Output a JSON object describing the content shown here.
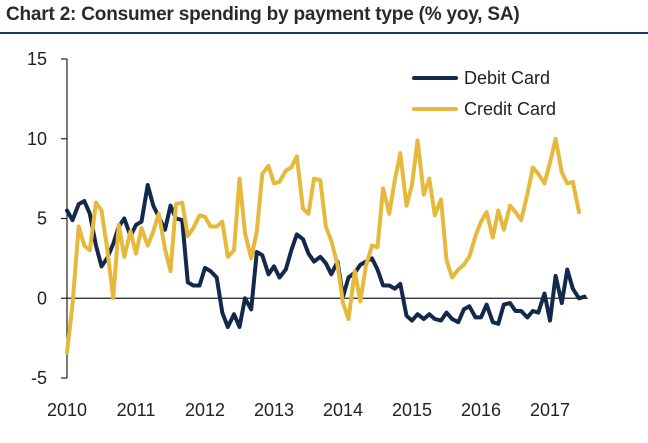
{
  "chart_data": {
    "type": "line",
    "title": "Chart 2: Consumer spending by payment type (% yoy, SA)",
    "xlabel": "",
    "ylabel": "",
    "xlim": [
      2010.0,
      2017.55
    ],
    "ylim": [
      -5,
      15
    ],
    "yticks": [
      "15",
      "10",
      "5",
      "0",
      "-5"
    ],
    "xticks": [
      "2010",
      "2011",
      "2012",
      "2013",
      "2014",
      "2015",
      "2016",
      "2017"
    ],
    "legend_position": "top-right",
    "grid": false,
    "series": [
      {
        "name": "Debit Card",
        "color": "#13294b",
        "points": [
          [
            2010.0,
            5.5
          ],
          [
            2010.08,
            4.9
          ],
          [
            2010.17,
            5.9
          ],
          [
            2010.25,
            6.1
          ],
          [
            2010.33,
            5.3
          ],
          [
            2010.42,
            3.3
          ],
          [
            2010.5,
            2.0
          ],
          [
            2010.58,
            2.5
          ],
          [
            2010.67,
            3.4
          ],
          [
            2010.75,
            4.5
          ],
          [
            2010.83,
            5.0
          ],
          [
            2010.92,
            3.9
          ],
          [
            2011.0,
            4.6
          ],
          [
            2011.08,
            4.8
          ],
          [
            2011.17,
            7.1
          ],
          [
            2011.25,
            5.8
          ],
          [
            2011.33,
            5.1
          ],
          [
            2011.42,
            4.3
          ],
          [
            2011.5,
            5.8
          ],
          [
            2011.58,
            5.0
          ],
          [
            2011.67,
            4.9
          ],
          [
            2011.75,
            1.0
          ],
          [
            2011.83,
            0.8
          ],
          [
            2011.92,
            0.8
          ],
          [
            2012.0,
            1.9
          ],
          [
            2012.08,
            1.7
          ],
          [
            2012.17,
            1.3
          ],
          [
            2012.25,
            -0.9
          ],
          [
            2012.33,
            -1.8
          ],
          [
            2012.42,
            -1.0
          ],
          [
            2012.5,
            -1.8
          ],
          [
            2012.58,
            0.0
          ],
          [
            2012.67,
            -0.7
          ],
          [
            2012.75,
            2.9
          ],
          [
            2012.83,
            2.7
          ],
          [
            2012.92,
            1.5
          ],
          [
            2013.0,
            2.0
          ],
          [
            2013.08,
            1.3
          ],
          [
            2013.17,
            1.8
          ],
          [
            2013.25,
            3.0
          ],
          [
            2013.33,
            4.0
          ],
          [
            2013.42,
            3.7
          ],
          [
            2013.5,
            2.8
          ],
          [
            2013.58,
            2.3
          ],
          [
            2013.67,
            2.6
          ],
          [
            2013.75,
            2.2
          ],
          [
            2013.83,
            1.5
          ],
          [
            2013.92,
            2.3
          ],
          [
            2014.0,
            0.1
          ],
          [
            2014.08,
            1.3
          ],
          [
            2014.17,
            1.6
          ],
          [
            2014.25,
            2.1
          ],
          [
            2014.33,
            2.3
          ],
          [
            2014.42,
            2.5
          ],
          [
            2014.5,
            1.8
          ],
          [
            2014.58,
            0.8
          ],
          [
            2014.67,
            0.8
          ],
          [
            2014.75,
            0.6
          ],
          [
            2014.83,
            0.9
          ],
          [
            2014.92,
            -1.1
          ],
          [
            2015.0,
            -1.4
          ],
          [
            2015.08,
            -1.0
          ],
          [
            2015.17,
            -1.3
          ],
          [
            2015.25,
            -1.0
          ],
          [
            2015.33,
            -1.3
          ],
          [
            2015.42,
            -1.4
          ],
          [
            2015.5,
            -0.9
          ],
          [
            2015.58,
            -1.3
          ],
          [
            2015.67,
            -1.5
          ],
          [
            2015.75,
            -0.7
          ],
          [
            2015.83,
            -0.5
          ],
          [
            2015.92,
            -1.2
          ],
          [
            2016.0,
            -1.2
          ],
          [
            2016.08,
            -0.4
          ],
          [
            2016.17,
            -1.5
          ],
          [
            2016.25,
            -1.6
          ],
          [
            2016.33,
            -0.4
          ],
          [
            2016.42,
            -0.3
          ],
          [
            2016.5,
            -0.8
          ],
          [
            2016.58,
            -0.8
          ],
          [
            2016.67,
            -1.2
          ],
          [
            2016.75,
            -0.8
          ],
          [
            2016.83,
            -0.9
          ],
          [
            2016.92,
            0.3
          ],
          [
            2017.0,
            -1.4
          ],
          [
            2017.08,
            1.4
          ],
          [
            2017.17,
            -0.3
          ],
          [
            2017.25,
            1.8
          ],
          [
            2017.33,
            0.6
          ],
          [
            2017.42,
            0.0
          ],
          [
            2017.5,
            0.1
          ]
        ]
      },
      {
        "name": "Credit Card",
        "color": "#e6b93c",
        "points": [
          [
            2010.0,
            -3.4
          ],
          [
            2010.08,
            -0.4
          ],
          [
            2010.17,
            4.5
          ],
          [
            2010.25,
            3.3
          ],
          [
            2010.33,
            3.0
          ],
          [
            2010.42,
            6.0
          ],
          [
            2010.5,
            5.5
          ],
          [
            2010.58,
            3.2
          ],
          [
            2010.67,
            0.0
          ],
          [
            2010.75,
            4.6
          ],
          [
            2010.83,
            2.6
          ],
          [
            2010.92,
            4.2
          ],
          [
            2011.0,
            2.8
          ],
          [
            2011.08,
            4.4
          ],
          [
            2011.17,
            3.3
          ],
          [
            2011.25,
            4.2
          ],
          [
            2011.33,
            5.3
          ],
          [
            2011.42,
            3.1
          ],
          [
            2011.5,
            1.7
          ],
          [
            2011.58,
            5.9
          ],
          [
            2011.67,
            6.0
          ],
          [
            2011.75,
            3.9
          ],
          [
            2011.83,
            4.4
          ],
          [
            2011.92,
            5.2
          ],
          [
            2012.0,
            5.1
          ],
          [
            2012.08,
            4.5
          ],
          [
            2012.17,
            4.5
          ],
          [
            2012.25,
            4.8
          ],
          [
            2012.33,
            2.6
          ],
          [
            2012.42,
            3.0
          ],
          [
            2012.5,
            7.5
          ],
          [
            2012.58,
            4.1
          ],
          [
            2012.67,
            2.5
          ],
          [
            2012.75,
            4.2
          ],
          [
            2012.83,
            7.8
          ],
          [
            2012.92,
            8.3
          ],
          [
            2013.0,
            7.2
          ],
          [
            2013.08,
            7.3
          ],
          [
            2013.17,
            8.0
          ],
          [
            2013.25,
            8.2
          ],
          [
            2013.33,
            8.9
          ],
          [
            2013.42,
            5.6
          ],
          [
            2013.5,
            5.3
          ],
          [
            2013.58,
            7.5
          ],
          [
            2013.67,
            7.4
          ],
          [
            2013.75,
            4.5
          ],
          [
            2013.83,
            3.6
          ],
          [
            2013.92,
            2.1
          ],
          [
            2014.0,
            -0.3
          ],
          [
            2014.08,
            -1.3
          ],
          [
            2014.17,
            1.7
          ],
          [
            2014.25,
            -0.2
          ],
          [
            2014.33,
            2.0
          ],
          [
            2014.42,
            3.3
          ],
          [
            2014.5,
            3.2
          ],
          [
            2014.58,
            6.9
          ],
          [
            2014.67,
            5.3
          ],
          [
            2014.75,
            7.4
          ],
          [
            2014.83,
            9.1
          ],
          [
            2014.92,
            5.8
          ],
          [
            2015.0,
            7.1
          ],
          [
            2015.08,
            9.9
          ],
          [
            2015.17,
            6.5
          ],
          [
            2015.25,
            7.5
          ],
          [
            2015.33,
            5.2
          ],
          [
            2015.42,
            6.2
          ],
          [
            2015.5,
            2.4
          ],
          [
            2015.58,
            1.3
          ],
          [
            2015.67,
            1.8
          ],
          [
            2015.75,
            2.1
          ],
          [
            2015.83,
            2.6
          ],
          [
            2015.92,
            3.9
          ],
          [
            2016.0,
            4.8
          ],
          [
            2016.08,
            5.4
          ],
          [
            2016.17,
            3.8
          ],
          [
            2016.25,
            5.5
          ],
          [
            2016.33,
            4.3
          ],
          [
            2016.42,
            5.8
          ],
          [
            2016.5,
            5.4
          ],
          [
            2016.58,
            4.9
          ],
          [
            2016.67,
            6.5
          ],
          [
            2016.75,
            8.2
          ],
          [
            2016.83,
            7.8
          ],
          [
            2016.92,
            7.2
          ],
          [
            2017.0,
            8.5
          ],
          [
            2017.08,
            10.0
          ],
          [
            2017.17,
            7.9
          ],
          [
            2017.25,
            7.2
          ],
          [
            2017.33,
            7.3
          ],
          [
            2017.42,
            5.4
          ]
        ]
      }
    ]
  }
}
